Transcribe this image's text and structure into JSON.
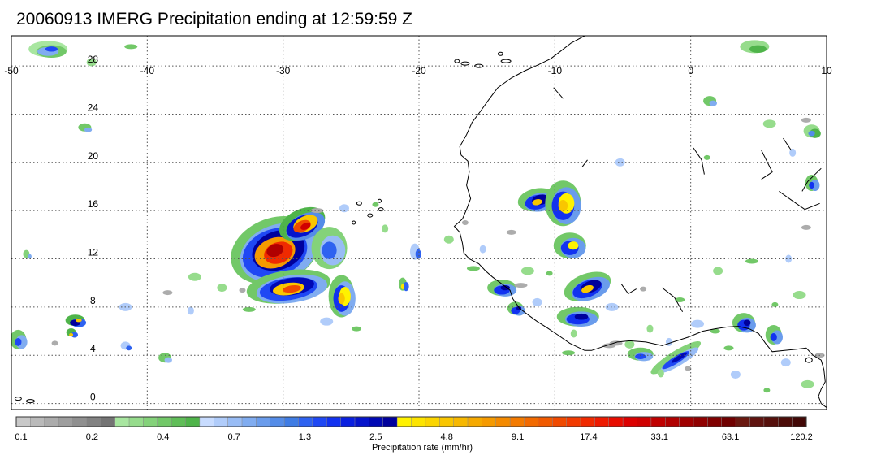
{
  "title": "20060913 IMERG Precipitation ending at 12:59:59 Z",
  "map": {
    "lon_range": [
      -50,
      10
    ],
    "lat_range": [
      -0.5,
      30.5
    ],
    "lon_ticks": [
      -50,
      -40,
      -30,
      -20,
      -10,
      0,
      10
    ],
    "lon_tick_labels": [
      "-50",
      "-40",
      "-30",
      "-20",
      "-10",
      "0",
      "10"
    ],
    "lat_ticks": [
      0,
      4,
      8,
      12,
      16,
      20,
      24,
      28
    ],
    "lat_tick_labels": [
      "0",
      "4",
      "8",
      "12",
      "16",
      "20",
      "24",
      "28"
    ],
    "grid": "dotted",
    "coastline_color": "#000000"
  },
  "colorbar": {
    "label": "Precipitation rate (mm/hr)",
    "tick_labels": [
      "0.1",
      "0.2",
      "0.4",
      "0.7",
      "1.3",
      "2.5",
      "4.8",
      "9.1",
      "17.4",
      "33.1",
      "63.1",
      "120.2"
    ],
    "colors": [
      "#c8c8c8",
      "#bababa",
      "#acacac",
      "#9e9e9e",
      "#909090",
      "#828282",
      "#747474",
      "#a8e6a0",
      "#96dc8c",
      "#84d27a",
      "#72c868",
      "#60be58",
      "#4fb44a",
      "#c8dcff",
      "#b0ccfa",
      "#98bcf5",
      "#80acf0",
      "#6a9cec",
      "#548ce8",
      "#3f7ce4",
      "#2e62f0",
      "#1f48f4",
      "#1232f0",
      "#0a20e0",
      "#0614cc",
      "#0008b4",
      "#00009c",
      "#fff200",
      "#fde400",
      "#fbd500",
      "#f9c600",
      "#f7b800",
      "#f5a900",
      "#f59a00",
      "#f48a00",
      "#f37a00",
      "#f26a00",
      "#f15a00",
      "#f04a00",
      "#f23a00",
      "#f02a00",
      "#ee1a00",
      "#e80c00",
      "#dc0000",
      "#d00000",
      "#c00000",
      "#b00000",
      "#a00000",
      "#900000",
      "#800000",
      "#700000",
      "#6a1810",
      "#601410",
      "#56100c",
      "#4c0c08",
      "#420806"
    ]
  }
}
